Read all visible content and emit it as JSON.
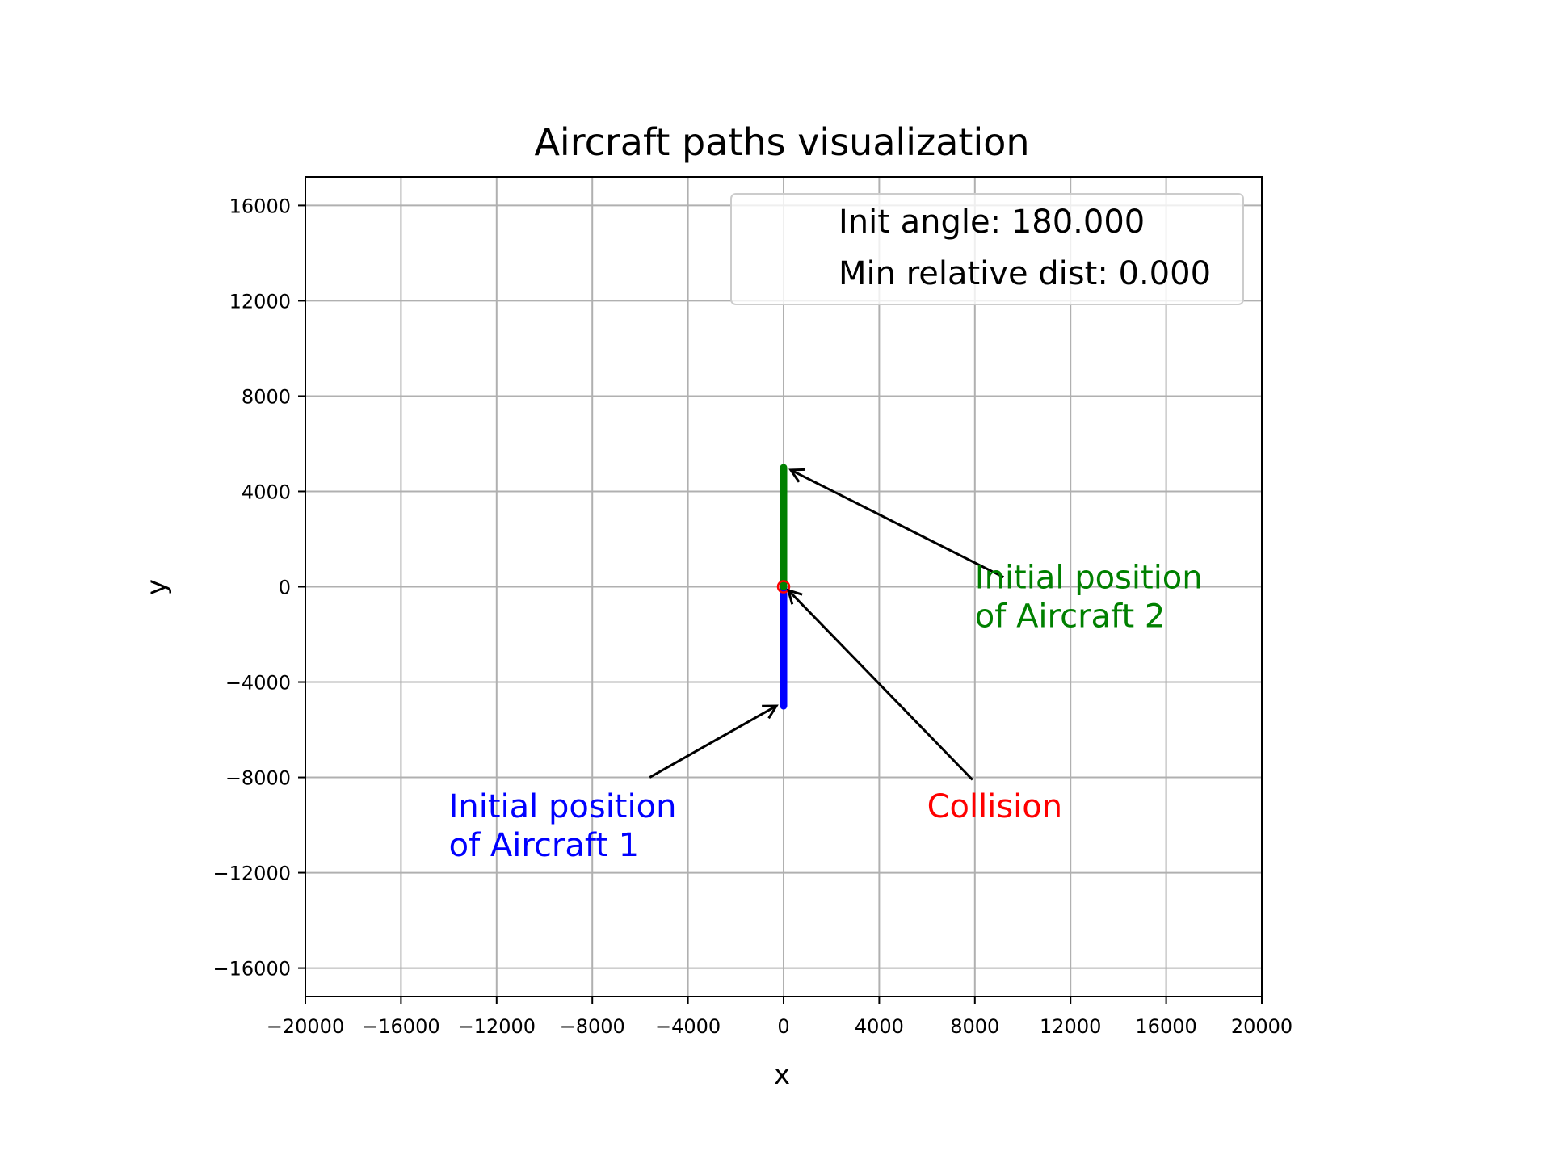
{
  "chart_data": {
    "type": "line",
    "title": "Aircraft paths visualization",
    "xlabel": "x",
    "ylabel": "y",
    "xlim": [
      -20000,
      20000
    ],
    "ylim": [
      -17200,
      17200
    ],
    "xticks": [
      -20000,
      -16000,
      -12000,
      -8000,
      -4000,
      0,
      4000,
      8000,
      12000,
      16000,
      20000
    ],
    "xtick_labels": [
      "−20000",
      "−16000",
      "−12000",
      "−8000",
      "−4000",
      "0",
      "4000",
      "8000",
      "12000",
      "16000",
      "20000"
    ],
    "yticks": [
      -16000,
      -12000,
      -8000,
      -4000,
      0,
      4000,
      8000,
      12000,
      16000
    ],
    "ytick_labels": [
      "−16000",
      "−12000",
      "−8000",
      "−4000",
      "0",
      "4000",
      "8000",
      "12000",
      "16000"
    ],
    "grid": true,
    "legend": {
      "placement": "upper right",
      "entries": [
        "Init angle: 180.000",
        "Min relative dist: 0.000"
      ]
    },
    "series": [
      {
        "color": "#0000ff",
        "x": [
          0,
          0
        ],
        "y": [
          -5000,
          0
        ]
      },
      {
        "color": "#008000",
        "x": [
          0,
          0
        ],
        "y": [
          5000,
          0
        ]
      }
    ],
    "collision_point": {
      "x": 0,
      "y": 0,
      "color": "#ff0000"
    },
    "annotations": [
      {
        "lines": [
          "Initial position",
          "of Aircraft 1"
        ],
        "color": "#0000ff",
        "text_xy": [
          -14000,
          -9200
        ],
        "arrow_from": [
          -5600,
          -8000
        ],
        "arrow_to": [
          -300,
          -5000
        ]
      },
      {
        "lines": [
          "Initial position",
          "of Aircraft 2"
        ],
        "color": "#008000",
        "text_xy": [
          8000,
          400
        ],
        "arrow_from": [
          9200,
          400
        ],
        "arrow_to": [
          300,
          4900
        ]
      },
      {
        "lines": [
          "Collision"
        ],
        "color": "#ff0000",
        "text_xy": [
          6000,
          -9200
        ],
        "arrow_from": [
          7900,
          -8100
        ],
        "arrow_to": [
          200,
          -150
        ]
      }
    ]
  }
}
